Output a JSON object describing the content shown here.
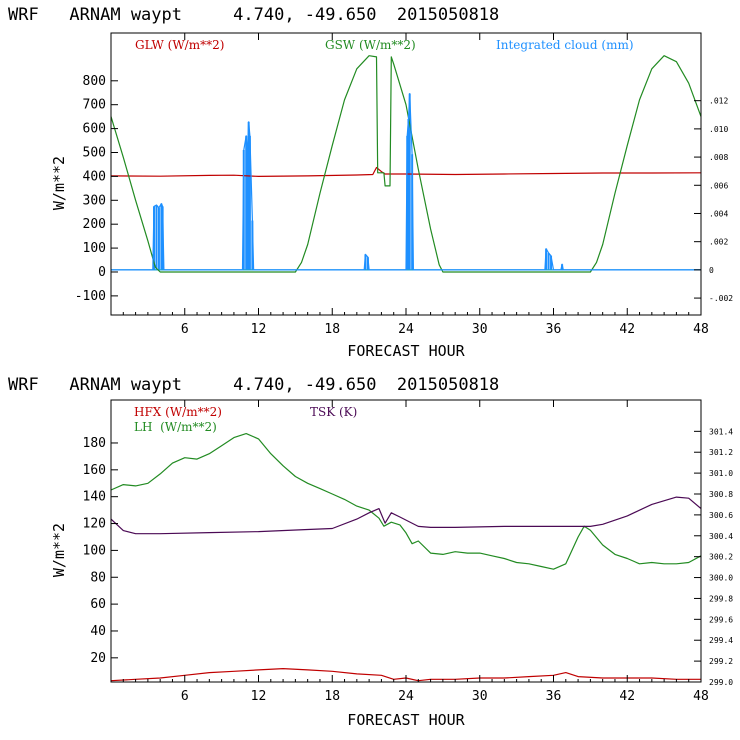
{
  "colors": {
    "red": "#c00000",
    "green": "#228b22",
    "blue": "#1e90ff",
    "cyan": "#1aa0d8",
    "purple": "#4b0a55",
    "axis": "#000000"
  },
  "chart_data": [
    {
      "id": "top",
      "type": "line",
      "header": "WRF   ARNAM waypt     4.740, -49.650  2015050818",
      "title": "WRF ARNAM waypt 4.740, -49.650 2015050818",
      "xlabel": "FORECAST HOUR",
      "ylabel": "W/m**2",
      "xlim": [
        0,
        48
      ],
      "ylim": [
        -180,
        1000
      ],
      "xticks": [
        6,
        12,
        18,
        24,
        30,
        36,
        42,
        48
      ],
      "yticks": [
        -100,
        0,
        100,
        200,
        300,
        400,
        500,
        600,
        700,
        800
      ],
      "y2lim": [
        -0.0032,
        0.0168
      ],
      "y2ticks": [
        -0.002,
        0,
        0.002,
        0.004,
        0.006,
        0.008,
        0.01,
        0.012
      ],
      "y2ticklabels": [
        "-.002",
        "0",
        ".002",
        ".004",
        ".006",
        ".008",
        ".010",
        ".012"
      ],
      "legend": [
        {
          "label": "GLW (W/m**2)",
          "color": "red"
        },
        {
          "label": "GSW (W/m**2)",
          "color": "green"
        },
        {
          "label": "Integrated cloud (mm)",
          "color": "blue"
        }
      ],
      "series": [
        {
          "name": "GLW",
          "color": "red",
          "axis": "left",
          "points": [
            [
              0,
              402
            ],
            [
              4,
              401
            ],
            [
              8,
              404
            ],
            [
              10,
              405
            ],
            [
              12,
              400
            ],
            [
              16,
              402
            ],
            [
              20,
              406
            ],
            [
              21.3,
              408
            ],
            [
              21.6,
              437
            ],
            [
              22.0,
              420
            ],
            [
              22.3,
              410
            ],
            [
              24,
              410
            ],
            [
              28,
              408
            ],
            [
              32,
              410
            ],
            [
              36,
              412
            ],
            [
              40,
              414
            ],
            [
              44,
              414
            ],
            [
              48,
              415
            ]
          ]
        },
        {
          "name": "GSW",
          "color": "green",
          "axis": "left",
          "points": [
            [
              0,
              650
            ],
            [
              1,
              480
            ],
            [
              2,
              300
            ],
            [
              3,
              130
            ],
            [
              3.6,
              20
            ],
            [
              4,
              0
            ],
            [
              15,
              0
            ],
            [
              15.5,
              40
            ],
            [
              16,
              115
            ],
            [
              17,
              330
            ],
            [
              18,
              530
            ],
            [
              19,
              720
            ],
            [
              20,
              850
            ],
            [
              21,
              905
            ],
            [
              21.6,
              900
            ],
            [
              21.7,
              415
            ],
            [
              22.2,
              415
            ],
            [
              22.3,
              360
            ],
            [
              22.7,
              360
            ],
            [
              22.8,
              900
            ],
            [
              23,
              870
            ],
            [
              24,
              700
            ],
            [
              25,
              430
            ],
            [
              26,
              180
            ],
            [
              26.7,
              30
            ],
            [
              27,
              0
            ],
            [
              39,
              0
            ],
            [
              39.5,
              40
            ],
            [
              40,
              115
            ],
            [
              41,
              330
            ],
            [
              42,
              530
            ],
            [
              43,
              720
            ],
            [
              44,
              850
            ],
            [
              45,
              905
            ],
            [
              46,
              880
            ],
            [
              47,
              790
            ],
            [
              48,
              650
            ]
          ]
        },
        {
          "name": "Integrated cloud",
          "color": "blue",
          "axis": "right",
          "points": [
            [
              0,
              0
            ],
            [
              3.4,
              0
            ],
            [
              3.5,
              0.0045
            ],
            [
              3.7,
              0.0046
            ],
            [
              3.9,
              0.0044
            ],
            [
              4.1,
              0.0047
            ],
            [
              4.2,
              0.0045
            ],
            [
              4.3,
              0
            ],
            [
              9.8,
              0
            ],
            [
              10.7,
              0
            ],
            [
              10.8,
              0.0085
            ],
            [
              11,
              0.0095
            ],
            [
              11.1,
              0.0082
            ],
            [
              11.2,
              0.0105
            ],
            [
              11.3,
              0.0095
            ],
            [
              11.5,
              0.0035
            ],
            [
              11.6,
              0
            ],
            [
              20.6,
              0
            ],
            [
              20.7,
              0.0011
            ],
            [
              20.9,
              0.0009
            ],
            [
              21,
              0
            ],
            [
              24,
              0
            ],
            [
              24.1,
              0.0095
            ],
            [
              24.2,
              0.0107
            ],
            [
              24.3,
              0.0125
            ],
            [
              24.5,
              0.0082
            ],
            [
              24.6,
              0
            ],
            [
              35.3,
              0
            ],
            [
              35.4,
              0.0015
            ],
            [
              35.6,
              0.0012
            ],
            [
              35.8,
              0.001
            ],
            [
              36,
              0
            ],
            [
              36.6,
              0
            ],
            [
              36.7,
              0.0004
            ],
            [
              36.8,
              0
            ],
            [
              48,
              0
            ]
          ]
        }
      ]
    },
    {
      "id": "bottom",
      "type": "line",
      "header": "WRF   ARNAM waypt     4.740, -49.650  2015050818",
      "title": "WRF ARNAM waypt 4.740, -49.650 2015050818",
      "xlabel": "FORECAST HOUR",
      "ylabel": "W/m**2",
      "xlim": [
        0,
        48
      ],
      "ylim": [
        2,
        212
      ],
      "xticks": [
        6,
        12,
        18,
        24,
        30,
        36,
        42,
        48
      ],
      "yticks": [
        20,
        40,
        60,
        80,
        100,
        120,
        140,
        160,
        180
      ],
      "y2lim": [
        299.0,
        301.7
      ],
      "y2ticks": [
        299.0,
        299.2,
        299.4,
        299.6,
        299.8,
        300.0,
        300.2,
        300.4,
        300.6,
        300.8,
        301.0,
        301.2,
        301.4
      ],
      "y2ticklabels": [
        "299.0",
        "299.2",
        "299.4",
        "299.6",
        "299.8",
        "300.0",
        "300.2",
        "300.4",
        "300.6",
        "300.8",
        "301.0",
        "301.2",
        "301.4"
      ],
      "legend": [
        {
          "label": "HFX (W/m**2)",
          "color": "red"
        },
        {
          "label": "LH  (W/m**2)",
          "color": "green"
        },
        {
          "label": "TSK (K)",
          "color": "purple"
        }
      ],
      "series": [
        {
          "name": "HFX",
          "color": "red",
          "axis": "left",
          "points": [
            [
              0,
              3
            ],
            [
              2,
              4
            ],
            [
              4,
              5
            ],
            [
              6,
              7
            ],
            [
              8,
              9
            ],
            [
              10,
              10
            ],
            [
              12,
              11
            ],
            [
              14,
              12
            ],
            [
              16,
              11
            ],
            [
              18,
              10
            ],
            [
              20,
              8
            ],
            [
              22,
              7
            ],
            [
              23,
              4
            ],
            [
              24,
              5
            ],
            [
              25,
              3
            ],
            [
              26,
              4
            ],
            [
              28,
              4
            ],
            [
              30,
              5
            ],
            [
              32,
              5
            ],
            [
              34,
              6
            ],
            [
              36,
              7
            ],
            [
              37,
              9
            ],
            [
              38,
              6
            ],
            [
              40,
              5
            ],
            [
              42,
              5
            ],
            [
              44,
              5
            ],
            [
              46,
              4
            ],
            [
              48,
              4
            ]
          ]
        },
        {
          "name": "LH",
          "color": "green",
          "axis": "left",
          "points": [
            [
              0,
              145
            ],
            [
              1,
              149
            ],
            [
              2,
              148
            ],
            [
              3,
              150
            ],
            [
              4,
              157
            ],
            [
              5,
              165
            ],
            [
              6,
              169
            ],
            [
              7,
              168
            ],
            [
              8,
              172
            ],
            [
              9,
              178
            ],
            [
              10,
              184
            ],
            [
              11,
              187
            ],
            [
              12,
              183
            ],
            [
              13,
              172
            ],
            [
              14,
              163
            ],
            [
              15,
              155
            ],
            [
              16,
              150
            ],
            [
              17,
              146
            ],
            [
              18,
              142
            ],
            [
              19,
              138
            ],
            [
              20,
              133
            ],
            [
              21,
              130
            ],
            [
              21.8,
              124
            ],
            [
              22.2,
              118
            ],
            [
              22.8,
              121
            ],
            [
              23.5,
              119
            ],
            [
              24,
              113
            ],
            [
              24.5,
              105
            ],
            [
              25,
              107
            ],
            [
              26,
              98
            ],
            [
              27,
              97
            ],
            [
              28,
              99
            ],
            [
              29,
              98
            ],
            [
              30,
              98
            ],
            [
              31,
              96
            ],
            [
              32,
              94
            ],
            [
              33,
              91
            ],
            [
              34,
              90
            ],
            [
              35,
              88
            ],
            [
              36,
              86
            ],
            [
              37,
              90
            ],
            [
              38,
              110
            ],
            [
              38.5,
              118
            ],
            [
              39,
              115
            ],
            [
              40,
              104
            ],
            [
              41,
              97
            ],
            [
              42,
              94
            ],
            [
              43,
              90
            ],
            [
              44,
              91
            ],
            [
              45,
              90
            ],
            [
              46,
              90
            ],
            [
              47,
              91
            ],
            [
              48,
              96
            ]
          ]
        },
        {
          "name": "TSK",
          "color": "purple",
          "axis": "right",
          "points": [
            [
              0,
              300.56
            ],
            [
              1,
              300.45
            ],
            [
              2,
              300.42
            ],
            [
              4,
              300.42
            ],
            [
              8,
              300.43
            ],
            [
              12,
              300.44
            ],
            [
              16,
              300.46
            ],
            [
              18,
              300.47
            ],
            [
              20,
              300.56
            ],
            [
              21,
              300.62
            ],
            [
              21.8,
              300.66
            ],
            [
              22.3,
              300.52
            ],
            [
              22.8,
              300.62
            ],
            [
              23.5,
              300.58
            ],
            [
              25,
              300.49
            ],
            [
              26,
              300.48
            ],
            [
              28,
              300.48
            ],
            [
              32,
              300.49
            ],
            [
              36,
              300.49
            ],
            [
              38,
              300.49
            ],
            [
              39,
              300.49
            ],
            [
              40,
              300.51
            ],
            [
              42,
              300.59
            ],
            [
              44,
              300.7
            ],
            [
              46,
              300.77
            ],
            [
              47,
              300.76
            ],
            [
              48,
              300.66
            ]
          ]
        }
      ]
    }
  ]
}
